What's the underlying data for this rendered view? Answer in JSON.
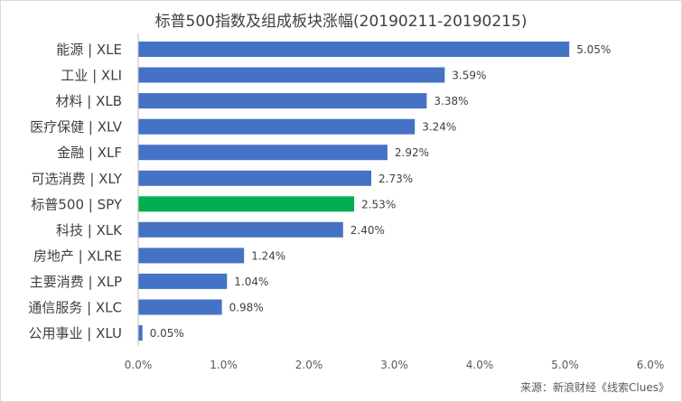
{
  "chart_data": {
    "type": "bar",
    "orientation": "horizontal",
    "title": "标普500指数及组成板块涨幅(20190211-20190215)",
    "categories": [
      "能源 | XLE",
      "工业 | XLI",
      "材料 | XLB",
      "医疗保健 | XLV",
      "金融 | XLF",
      "可选消费 | XLY",
      "标普500 | SPY",
      "科技 | XLK",
      "房地产 | XLRE",
      "主要消费 | XLP",
      "通信服务 | XLC",
      "公用事业 | XLU"
    ],
    "values": [
      5.05,
      3.59,
      3.38,
      3.24,
      2.92,
      2.73,
      2.53,
      2.4,
      1.24,
      1.04,
      0.98,
      0.05
    ],
    "value_labels": [
      "5.05%",
      "3.59%",
      "3.38%",
      "3.24%",
      "2.92%",
      "2.73%",
      "2.53%",
      "2.40%",
      "1.24%",
      "1.04%",
      "0.98%",
      "0.05%"
    ],
    "highlight": "标普500 | SPY",
    "colors": {
      "default": "#4472c4",
      "highlight": "#00b050"
    },
    "xlim": [
      0,
      6
    ],
    "xticks": [
      0,
      1,
      2,
      3,
      4,
      5,
      6
    ],
    "xtick_labels": [
      "0.0%",
      "1.0%",
      "2.0%",
      "3.0%",
      "4.0%",
      "5.0%",
      "6.0%"
    ],
    "xlabel": "",
    "ylabel": "",
    "grid": false,
    "legend": "none"
  },
  "source_note": "来源：新浪财经《线索Clues》"
}
